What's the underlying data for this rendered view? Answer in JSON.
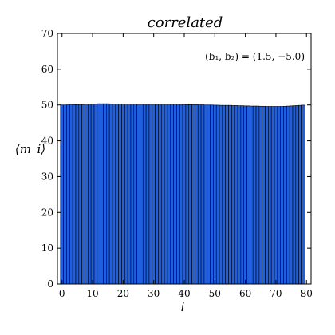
{
  "chart_data": {
    "type": "bar",
    "title": "correlated",
    "xlabel": "i",
    "ylabel": "⟨m_i⟩",
    "annotation": "(b₁, b₂) = (1.5, −5.0)",
    "xlim": [
      -1.5,
      81.5
    ],
    "ylim": [
      0,
      70
    ],
    "xticks": [
      0,
      10,
      20,
      30,
      40,
      50,
      60,
      70,
      80
    ],
    "yticks": [
      0,
      10,
      20,
      30,
      40,
      50,
      60,
      70
    ],
    "grid": false,
    "bar_color": "#1f5fe0",
    "edge_color": "#000000",
    "series": [
      {
        "x": [
          0,
          1,
          2,
          3,
          4,
          5,
          6,
          7,
          8,
          9,
          10,
          11,
          12,
          13,
          14,
          15,
          16,
          17,
          18,
          19,
          20,
          21,
          22,
          23,
          24,
          25,
          26,
          27,
          28,
          29,
          30,
          31,
          32,
          33,
          34,
          35,
          36,
          37,
          38,
          39,
          40,
          41,
          42,
          43,
          44,
          45,
          46,
          47,
          48,
          49,
          50,
          51,
          52,
          53,
          54,
          55,
          56,
          57,
          58,
          59,
          60,
          61,
          62,
          63,
          64,
          65,
          66,
          67,
          68,
          69,
          70,
          71,
          72,
          73,
          74,
          75,
          76,
          77,
          78,
          79
        ],
        "values": [
          50.0,
          50.0,
          50.05,
          50.05,
          50.1,
          50.1,
          50.15,
          50.15,
          50.2,
          50.2,
          50.25,
          50.3,
          50.35,
          50.35,
          50.35,
          50.35,
          50.3,
          50.3,
          50.3,
          50.3,
          50.25,
          50.25,
          50.25,
          50.25,
          50.25,
          50.2,
          50.2,
          50.2,
          50.2,
          50.2,
          50.2,
          50.2,
          50.2,
          50.2,
          50.2,
          50.2,
          50.2,
          50.2,
          50.2,
          50.15,
          50.15,
          50.1,
          50.1,
          50.1,
          50.1,
          50.05,
          50.05,
          50.0,
          50.0,
          50.0,
          49.95,
          49.95,
          49.9,
          49.9,
          49.9,
          49.9,
          49.85,
          49.85,
          49.8,
          49.8,
          49.75,
          49.75,
          49.7,
          49.7,
          49.7,
          49.65,
          49.65,
          49.6,
          49.6,
          49.6,
          49.6,
          49.6,
          49.6,
          49.65,
          49.7,
          49.75,
          49.8,
          49.85,
          49.9,
          49.95
        ]
      }
    ]
  }
}
